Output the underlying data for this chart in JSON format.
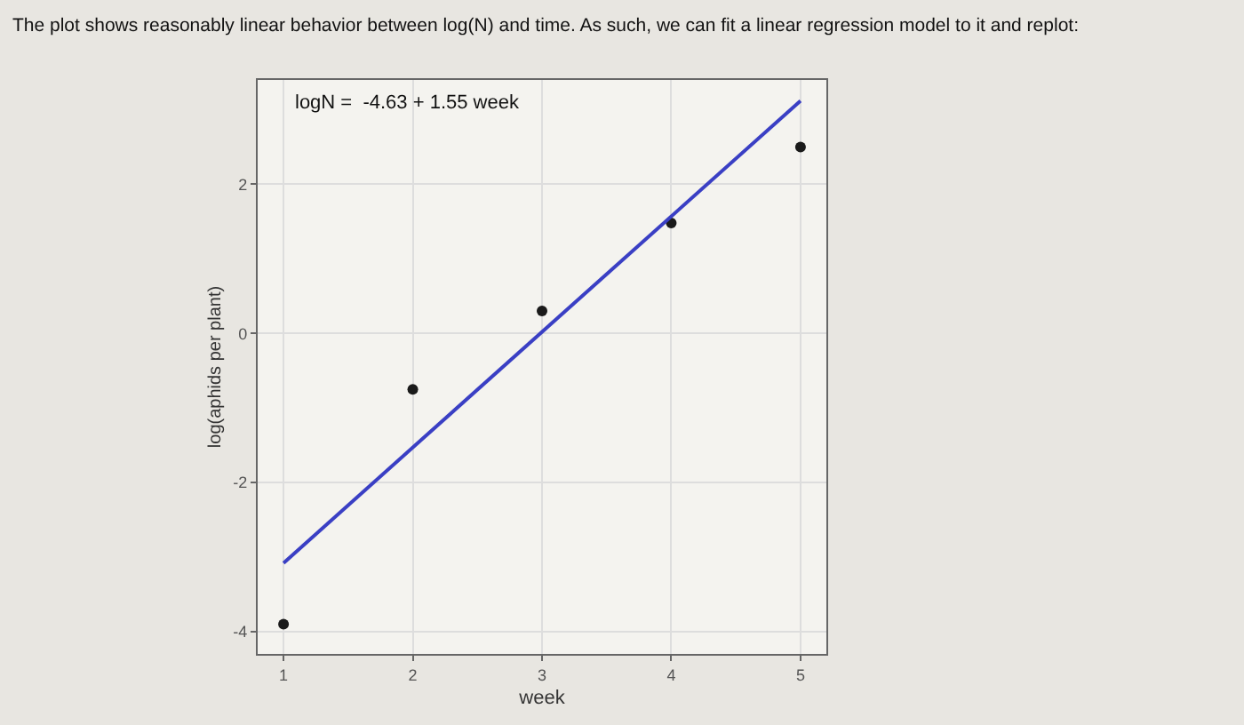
{
  "chart_data": {
    "type": "scatter",
    "title": "The plot shows reasonably linear behavior between log(N) and time. As such, we can fit a linear regression model to it and replot:",
    "xlabel": "week",
    "ylabel": "log(aphids per plant)",
    "annotations": [
      "logN =  -4.63 + 1.55 week"
    ],
    "series": [
      {
        "color": "#1a1a1a",
        "x": [
          1,
          2,
          3,
          4,
          5
        ],
        "values": [
          -3.9,
          -0.75,
          0.3,
          1.48,
          2.5
        ],
        "marker": "circle"
      },
      {
        "type": "line",
        "color": "#3a3fc4",
        "x": [
          1,
          5
        ],
        "values": [
          -3.08,
          3.12
        ],
        "marker": "none",
        "line_style": "solid"
      }
    ],
    "xlim": [
      0.8,
      5.2
    ],
    "ylim": [
      -4.3,
      3.4
    ],
    "xticks": [
      1,
      2,
      3,
      4,
      5
    ],
    "yticks": [
      -4,
      -2,
      0,
      2
    ],
    "grid": true,
    "legend": false
  }
}
